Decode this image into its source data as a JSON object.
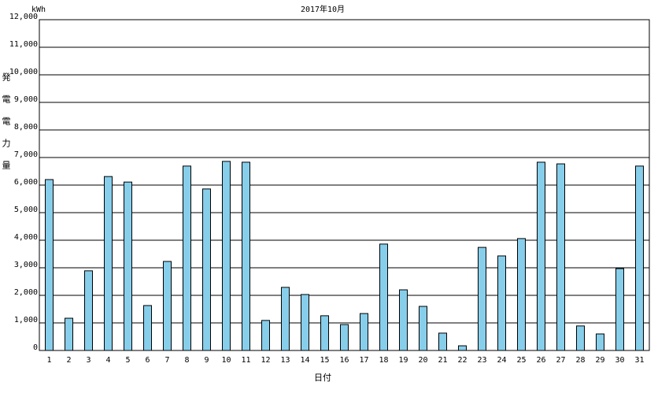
{
  "chart_data": {
    "type": "bar",
    "title": "2017年10月",
    "unit": "kWh",
    "y_label": "発電電力量",
    "x_label": "日付",
    "categories": [
      "1",
      "2",
      "3",
      "4",
      "5",
      "6",
      "7",
      "8",
      "9",
      "10",
      "11",
      "12",
      "13",
      "14",
      "15",
      "16",
      "17",
      "18",
      "19",
      "20",
      "21",
      "22",
      "23",
      "24",
      "25",
      "26",
      "27",
      "28",
      "29",
      "30",
      "31"
    ],
    "values": [
      6200,
      1170,
      2890,
      6310,
      6110,
      1630,
      3230,
      6690,
      5860,
      6860,
      6830,
      1090,
      2290,
      2030,
      1260,
      940,
      1340,
      3860,
      2200,
      1600,
      630,
      170,
      3740,
      3430,
      4060,
      6830,
      6770,
      890,
      600,
      2970,
      6690
    ],
    "color": "#87ceeb",
    "ylim": [
      0,
      12000
    ],
    "yticks": [
      0,
      {
        "value": 1000,
        "label": "1,000"
      },
      {
        "value": 2000,
        "label": "2,000"
      },
      {
        "value": 3000,
        "label": "3,000"
      },
      {
        "value": 4000,
        "label": "4,000"
      },
      {
        "value": 5000,
        "label": "5,000"
      },
      {
        "value": 6000,
        "label": "6,000"
      },
      {
        "value": 7000,
        "label": "7,000"
      },
      {
        "value": 8000,
        "label": "8,000"
      },
      {
        "value": 9000,
        "label": "9,000"
      },
      {
        "value": 10000,
        "label": "10,000"
      },
      {
        "value": 11000,
        "label": "11,000"
      },
      {
        "value": 12000,
        "label": "12,000"
      }
    ],
    "grid": true
  }
}
